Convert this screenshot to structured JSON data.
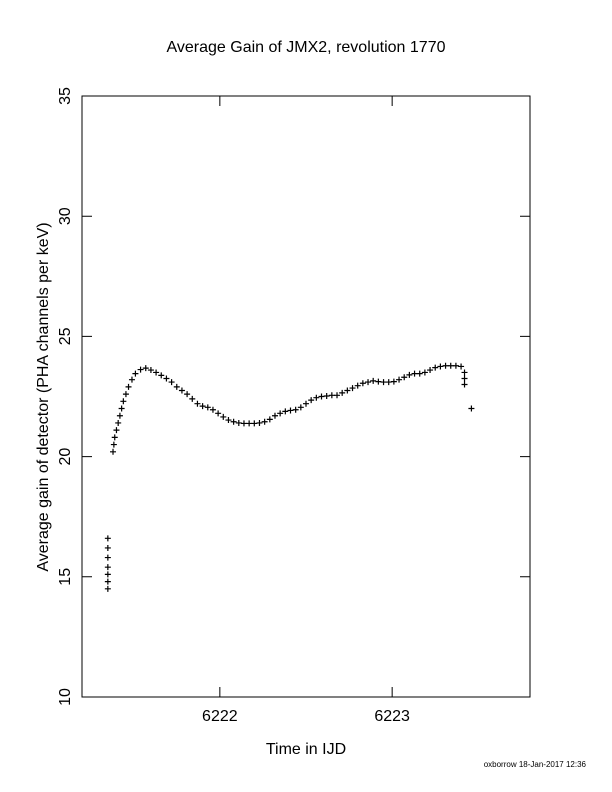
{
  "chart_data": {
    "type": "scatter",
    "title": "Average Gain of JMX2, revolution 1770",
    "x_label": "Time in IJD",
    "y_label": "Average gain of detector (PHA channels per keV)",
    "footer": "oxborrow 18-Jan-2017 12:36",
    "color": "#000000",
    "xlim": [
      6221.2,
      6223.8
    ],
    "xticks": [
      6222,
      6223
    ],
    "ylim": [
      10,
      35
    ],
    "yticks": [
      10,
      15,
      20,
      25,
      30,
      35
    ],
    "grid": false,
    "x": [
      6221.35,
      6221.35,
      6221.35,
      6221.35,
      6221.35,
      6221.35,
      6221.35,
      6221.38,
      6221.385,
      6221.39,
      6221.4,
      6221.41,
      6221.42,
      6221.43,
      6221.44,
      6221.455,
      6221.47,
      6221.49,
      6221.51,
      6221.54,
      6221.57,
      6221.6,
      6221.63,
      6221.66,
      6221.69,
      6221.72,
      6221.75,
      6221.78,
      6221.81,
      6221.84,
      6221.87,
      6221.9,
      6221.93,
      6221.96,
      6221.99,
      6222.02,
      6222.05,
      6222.08,
      6222.11,
      6222.14,
      6222.17,
      6222.2,
      6222.23,
      6222.26,
      6222.29,
      6222.32,
      6222.35,
      6222.38,
      6222.41,
      6222.44,
      6222.47,
      6222.5,
      6222.53,
      6222.56,
      6222.59,
      6222.62,
      6222.65,
      6222.68,
      6222.71,
      6222.74,
      6222.77,
      6222.8,
      6222.83,
      6222.86,
      6222.89,
      6222.92,
      6222.95,
      6222.98,
      6223.01,
      6223.04,
      6223.07,
      6223.1,
      6223.13,
      6223.16,
      6223.19,
      6223.22,
      6223.25,
      6223.28,
      6223.31,
      6223.34,
      6223.37,
      6223.4,
      6223.42,
      6223.42,
      6223.42,
      6223.46
    ],
    "values": [
      14.5,
      14.8,
      15.1,
      15.4,
      15.8,
      16.2,
      16.6,
      20.2,
      20.5,
      20.8,
      21.1,
      21.4,
      21.7,
      22.0,
      22.3,
      22.6,
      22.9,
      23.2,
      23.45,
      23.62,
      23.68,
      23.6,
      23.5,
      23.38,
      23.25,
      23.1,
      22.9,
      22.75,
      22.6,
      22.4,
      22.2,
      22.1,
      22.05,
      21.95,
      21.8,
      21.65,
      21.52,
      21.45,
      21.4,
      21.38,
      21.38,
      21.38,
      21.4,
      21.45,
      21.55,
      21.7,
      21.8,
      21.88,
      21.92,
      21.95,
      22.05,
      22.2,
      22.35,
      22.45,
      22.5,
      22.52,
      22.55,
      22.55,
      22.65,
      22.75,
      22.85,
      22.95,
      23.05,
      23.1,
      23.15,
      23.12,
      23.1,
      23.1,
      23.12,
      23.2,
      23.3,
      23.4,
      23.45,
      23.45,
      23.5,
      23.6,
      23.7,
      23.75,
      23.78,
      23.78,
      23.78,
      23.75,
      23.5,
      23.25,
      23.0,
      22.0
    ]
  }
}
